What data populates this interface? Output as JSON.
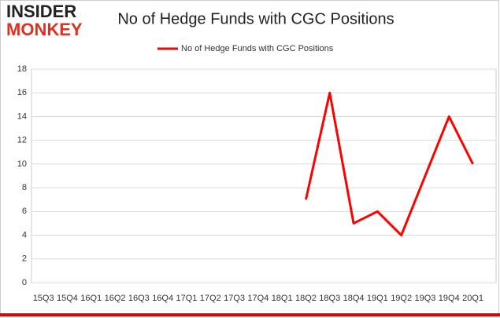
{
  "chart_data": {
    "type": "line",
    "logo": [
      "INSIDER",
      "MONKEY"
    ],
    "title": "No of Hedge Funds with CGC Positions",
    "categories": [
      "15Q3",
      "15Q4",
      "16Q1",
      "16Q2",
      "16Q3",
      "16Q4",
      "17Q1",
      "17Q2",
      "17Q3",
      "17Q4",
      "18Q1",
      "18Q2",
      "18Q3",
      "18Q4",
      "19Q1",
      "19Q2",
      "19Q3",
      "19Q4",
      "20Q1"
    ],
    "series": [
      {
        "name": "No of Hedge Funds with CGC Positions",
        "color": "#ff0000",
        "values": [
          null,
          null,
          null,
          null,
          null,
          null,
          null,
          null,
          null,
          null,
          null,
          7,
          16,
          5,
          6,
          4,
          9,
          14,
          10
        ]
      }
    ],
    "ylim": [
      0,
      18
    ],
    "yticks": [
      0,
      2,
      4,
      6,
      8,
      10,
      12,
      14,
      16,
      18
    ],
    "grid": true,
    "legend": "top"
  }
}
